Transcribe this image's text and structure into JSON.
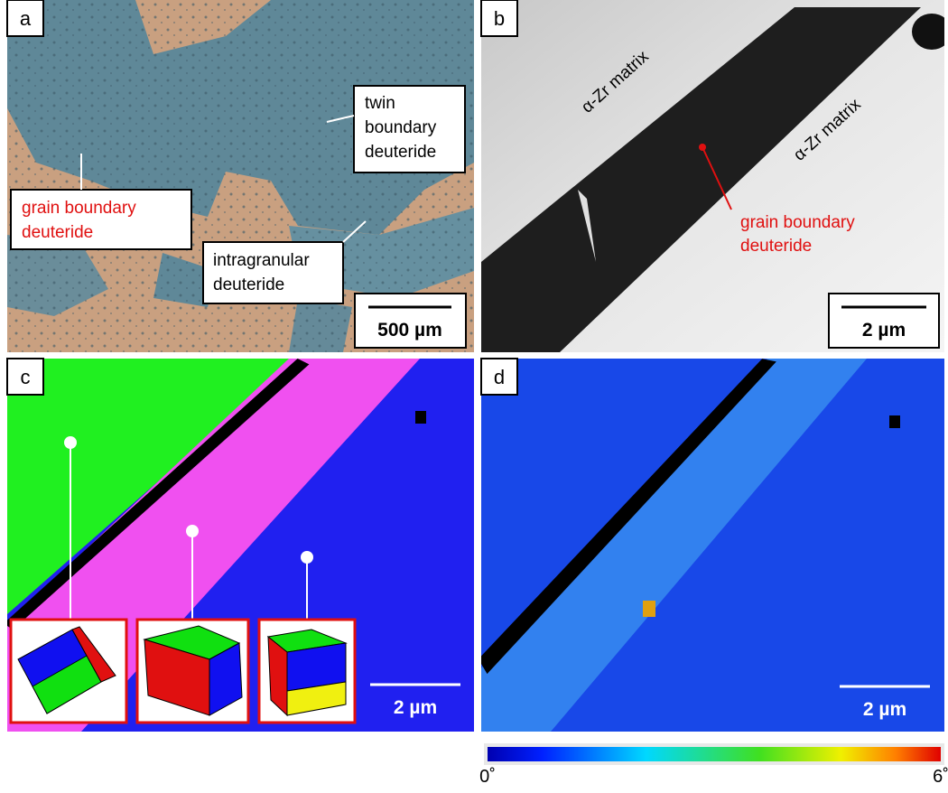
{
  "panels": {
    "a": {
      "label": "a",
      "twin": [
        "twin",
        "boundary",
        "deuteride"
      ],
      "grain": [
        "grain boundary",
        "deuteride"
      ],
      "intra": [
        "intragranular",
        "deuteride"
      ],
      "scale": "500 µm"
    },
    "b": {
      "label": "b",
      "matrix_left": "α-Zr matrix",
      "matrix_right": "α-Zr matrix",
      "grain": [
        "grain boundary",
        "deuteride"
      ],
      "scale": "2 µm"
    },
    "c": {
      "label": "c",
      "scale": "2 µm"
    },
    "d": {
      "label": "d",
      "scale": "2 µm"
    }
  },
  "colorbar": {
    "lim": [
      0,
      6
    ],
    "ticks": [
      {
        "value": 0,
        "label": "0˚"
      },
      {
        "value": 6,
        "label": "6˚"
      }
    ]
  }
}
